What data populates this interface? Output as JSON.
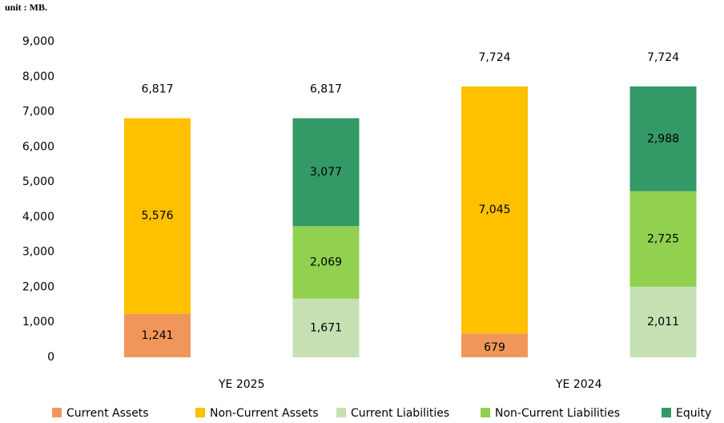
{
  "chart_data": {
    "type": "stacked_bar",
    "unit_label": "unit : MB.",
    "categories": [
      "YE 2025",
      null,
      "YE 2024",
      null
    ],
    "series": [
      {
        "name": "Current Assets",
        "color": "#f0965a",
        "values": [
          1241,
          null,
          679,
          null
        ],
        "value_labels": [
          "1,241",
          null,
          "679",
          null
        ]
      },
      {
        "name": "Non-Current Assets",
        "color": "#ffc000",
        "values": [
          5576,
          null,
          7045,
          null
        ],
        "value_labels": [
          "5,576",
          null,
          "7,045",
          null
        ]
      },
      {
        "name": "Current Liabilities",
        "color": "#c6e0b4",
        "values": [
          null,
          1671,
          null,
          2011
        ],
        "value_labels": [
          null,
          "1,671",
          null,
          "2,011"
        ]
      },
      {
        "name": "Non-Current Liabilities",
        "color": "#92d050",
        "values": [
          null,
          2069,
          null,
          2725
        ],
        "value_labels": [
          null,
          "2,069",
          null,
          "2,725"
        ]
      },
      {
        "name": "Equity",
        "color": "#339966",
        "values": [
          null,
          3077,
          null,
          2988
        ],
        "value_labels": [
          null,
          "3,077",
          null,
          "2,988"
        ]
      }
    ],
    "totals": [
      6817,
      6817,
      7724,
      7724
    ],
    "totals_labels": [
      "6,817",
      "6,817",
      "7,724",
      "7,724"
    ],
    "ylim": [
      0,
      9000
    ],
    "yticks": [
      0,
      {
        "value": 1000,
        "label": "1,000"
      },
      {
        "value": 2000,
        "label": "2,000"
      },
      {
        "value": 3000,
        "label": "3,000"
      },
      {
        "value": 4000,
        "label": "4,000"
      },
      {
        "value": 5000,
        "label": "5,000"
      },
      {
        "value": 6000,
        "label": "6,000"
      },
      {
        "value": 7000,
        "label": "7,000"
      },
      {
        "value": 8000,
        "label": "8,000"
      },
      {
        "value": 9000,
        "label": "9,000"
      }
    ],
    "grid": false,
    "legend": "bottom"
  }
}
